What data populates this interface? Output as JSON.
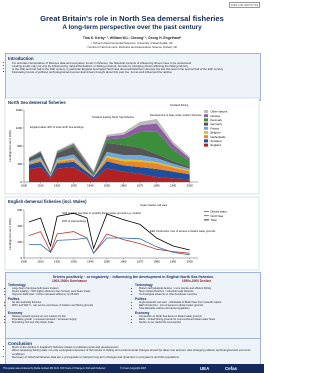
{
  "header": {
    "ref": "ICES CM 2007/O:33",
    "title": "Great Britain's role in North Sea demersal fisheries",
    "subtitle": "A long-term perspective over the past century",
    "authors": "Tina K. Kerby¹ ², William W.L. Cheung¹ ², Georg H. Engelhard²",
    "affiliations": [
      "¹ School of Environmental Sciences, University of East Anglia, UK",
      "² Centre for Environment, Fisheries and Aquaculture Science (Cefas), UK"
    ]
  },
  "introduction": {
    "heading": "Introduction",
    "bullets": [
      "For accurate interpretation of fisheries data and ecosystem trends in fisheries, the historical contexts of influencing drivers have to be understood",
      "Landing trends may not only be influenced by natural fluctuations or fishing pressure, but also by changing drivers affecting the fishing industry",
      "In the 19th and first half of the 20th century, in particular England dominated North Sea demersal fisheries in Europe but lost this lead in the second half of the 20th century",
      "Fluctuating trends of political, technological and economical drivers brought about this vast rise, but as well influenced the decline"
    ]
  },
  "chart_data": [
    {
      "type": "stacked-area",
      "title": "North Sea demersal fisheries",
      "y_label": "Landings (tonnes x 1000)",
      "x": [
        1903,
        1910,
        1916,
        1920,
        1930,
        1942,
        1950,
        1960,
        1970,
        1980,
        1990,
        2000
      ],
      "xlim": [
        1900,
        2005
      ],
      "xticks": [
        1900,
        1910,
        1920,
        1930,
        1940,
        1950,
        1960,
        1970,
        1980,
        1990,
        2000
      ],
      "ylim": [
        0,
        1600
      ],
      "yticks": [
        0,
        400,
        800,
        1200,
        1600
      ],
      "legend": "right",
      "series": [
        {
          "name": "England",
          "color": "#b22222",
          "values": [
            280,
            330,
            80,
            300,
            330,
            60,
            300,
            230,
            180,
            110,
            80,
            60
          ]
        },
        {
          "name": "Scotland",
          "color": "#1f4e9c",
          "values": [
            100,
            120,
            40,
            110,
            120,
            50,
            160,
            140,
            150,
            180,
            150,
            110
          ]
        },
        {
          "name": "Netherlands",
          "color": "#e8862a",
          "values": [
            30,
            40,
            20,
            40,
            50,
            10,
            80,
            90,
            120,
            120,
            90,
            70
          ]
        },
        {
          "name": "Belgium",
          "color": "#e6c229",
          "values": [
            10,
            15,
            5,
            20,
            30,
            5,
            40,
            40,
            40,
            30,
            25,
            20
          ]
        },
        {
          "name": "France",
          "color": "#6fa8dc",
          "values": [
            40,
            50,
            20,
            60,
            80,
            10,
            90,
            100,
            110,
            90,
            60,
            40
          ]
        },
        {
          "name": "Germany",
          "color": "#555555",
          "values": [
            60,
            100,
            20,
            110,
            180,
            30,
            200,
            220,
            160,
            90,
            60,
            40
          ]
        },
        {
          "name": "Denmark",
          "color": "#3c8d3c",
          "values": [
            10,
            15,
            10,
            20,
            30,
            30,
            80,
            150,
            350,
            500,
            250,
            120
          ]
        },
        {
          "name": "Norway",
          "color": "#8e5ea2",
          "values": [
            10,
            15,
            10,
            20,
            30,
            30,
            60,
            80,
            150,
            180,
            120,
            60
          ]
        },
        {
          "name": "Other nations",
          "color": "#bbbbbb",
          "values": [
            10,
            10,
            10,
            20,
            30,
            20,
            40,
            50,
            80,
            100,
            60,
            40
          ]
        }
      ],
      "annotations": [
        "England takes 40% of total North Sea landings",
        "Scotland leading North Sea fisheries",
        "European countries expanding their fisheries",
        "Development of large scale modern fisheries",
        "Scotland fishing"
      ]
    },
    {
      "type": "line",
      "title": "English demersal fisheries (incl. Wales)",
      "y_label": "Landings (tonnes x 1000)",
      "x": [
        1903,
        1910,
        1916,
        1920,
        1930,
        1938,
        1942,
        1950,
        1960,
        1970,
        1980,
        1990,
        2000
      ],
      "xlim": [
        1900,
        2005
      ],
      "xticks": [
        1900,
        1910,
        1920,
        1930,
        1940,
        1950,
        1960,
        1970,
        1980,
        1990,
        2000
      ],
      "ylim": [
        0,
        600
      ],
      "yticks": [
        0,
        200,
        400,
        600
      ],
      "legend": "right",
      "series": [
        {
          "name": "Total",
          "color": "#000000",
          "values": [
            450,
            500,
            150,
            520,
            560,
            500,
            120,
            550,
            480,
            420,
            250,
            150,
            100
          ]
        },
        {
          "name": "North Sea",
          "color": "#c0392b",
          "values": [
            280,
            330,
            80,
            300,
            330,
            250,
            60,
            300,
            230,
            180,
            110,
            80,
            60
          ]
        },
        {
          "name": "Distant water",
          "color": "#2e6db4",
          "values": [
            170,
            170,
            70,
            220,
            230,
            250,
            60,
            250,
            250,
            240,
            140,
            70,
            40
          ]
        }
      ],
      "annotations": [
        "Shift of North Sea fleet to possibly distant water grounds e.g. Iceland",
        "20% of total landings",
        "Angle trawlers call vans",
        "EEZ introduction: loss of access to distant water grounds"
      ]
    }
  ],
  "drivers": {
    "title": "Drivers positively ↑ or negatively ↓ influencing the development in English North Sea fisheries",
    "periods": [
      "1903-1930s  Dominance",
      "1950s-2000  Decline"
    ],
    "sections": [
      {
        "heading": "Technology",
        "left": [
          "Large fleet of purpose-built steam trawlers",
          "Steam trawling ↑ 30% higher efficiency than formerly used beam trawls",
          "Vigneron-Dahl trawl ↑ further increased efficiency by 25-40%"
        ],
        "right": [
          "Modern technological devices ↑ more precise and efficient fishing",
          "Stern trawlers/freezers ↑ industrial scale fisheries",
          "Technological advances in other European countries"
        ]
      },
      {
        "heading": "Politics",
        "left": [
          "No law restricting fisheries",
          "WW I and WW II ↓ war service and losses of trawlers and fishing grounds"
        ],
        "right": [
          "Anglo-Icelandic cod wars ↓ withdrawal of British fleet from Icelandic waters",
          "EEZ introduction ↓ loss of access to distant water grounds",
          "Total allowable catches and quota regulations"
        ]
      },
      {
        "heading": "Economy",
        "left": [
          "Railway network opened up new markets for fish",
          "Population growth ↑ increased demand ↑ increased supply",
          "Flourishing 'fish and chip shops' trade"
        ],
        "right": [
          "Competition of North Sea fleets on distant water grounds",
          "EEZs ↓ limited fishing grounds for unencumbered distant water fleets",
          "Decline in per capita fish consumption"
        ]
      }
    ]
  },
  "conclusion": {
    "heading": "Conclusion",
    "bullets": [
      "Much of the decline in England's fisheries relates to political events and developments",
      "When analysing fishing data, not only ecological responses of fish stocks to fishing and environmental changes should be taken into account, also changing political, technological and economic conditions",
      "Recovery of historical fisheries data are a prerequisite to interpret long-term changes and dynamics in ecosystems and fish populations"
    ]
  },
  "footer": {
    "note": "This poster was produced by Defra contract MF 1101 '100 Years of Change in Fish and Fisheries'",
    "copyright": "© Crown Copyright 2007",
    "logos": [
      "UEA",
      "Cefas"
    ]
  }
}
